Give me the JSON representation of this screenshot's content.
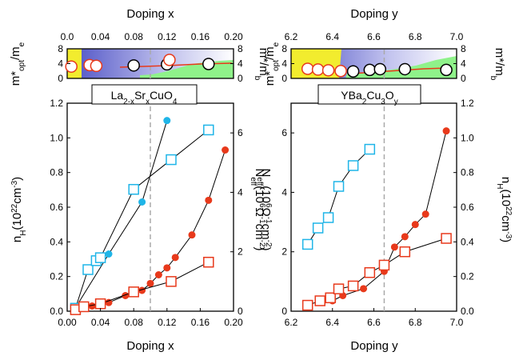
{
  "colors": {
    "filled_red": "#e8391b",
    "open_red": "#e8391b",
    "cyan": "#1fb5e8",
    "yellow": "#f2ec2e",
    "green": "#8ff28a",
    "purple": "#5a5cc8",
    "dash": "#aaaaaa"
  },
  "left": {
    "top_axis_label": "Doping x",
    "bottom_axis_label": "Doping x",
    "compound_label": "La2-xSrxCuO4",
    "left_ylabel": "nH(10^22cm^-3)",
    "right_ylabel": "Neff(10^6Ω^-1cm^-2)",
    "mass_left_label": "m*opt/me",
    "mass_right_label": "m*/mb",
    "x_ticks": [
      "0.00",
      "0.04",
      "0.08",
      "0.12",
      "0.16",
      "0.20"
    ],
    "top_x_ticks": [
      "0.0",
      "0.04",
      "0.08",
      "0.12",
      "0.16",
      "0.20"
    ],
    "left_y_ticks": [
      "0.0",
      "0.2",
      "0.4",
      "0.6",
      "0.8",
      "1.0",
      "1.2"
    ],
    "right_y_ticks": [
      "0",
      "2",
      "4",
      "6"
    ],
    "mass_left_ticks": [
      "0",
      "4",
      "8"
    ],
    "mass_right_ticks": [
      "0",
      "4",
      "8"
    ]
  },
  "right": {
    "top_axis_label": "Doping y",
    "bottom_axis_label": "Doping y",
    "compound_label": "YBa2Cu3Oy",
    "left_ylabel": "Neff(10^6Ω^-1cm^-2)",
    "right_ylabel": "nH(10^22cm^-3)",
    "mass_left_label": "m*opt/me",
    "mass_right_label": "m*/mb",
    "x_ticks": [
      "6.2",
      "6.4",
      "6.6",
      "6.8",
      "7.0"
    ],
    "top_x_ticks": [
      "6.2",
      "6.4",
      "6.6",
      "6.8",
      "7.0"
    ],
    "left_y_ticks": [
      "0",
      "2",
      "4",
      "6"
    ],
    "right_y_ticks": [
      "0.0",
      "0.2",
      "0.4",
      "0.6",
      "0.8",
      "1.0",
      "1.2"
    ],
    "mass_left_ticks": [
      "0",
      "4",
      "8"
    ],
    "mass_right_ticks": [
      "0",
      "4",
      "8"
    ]
  },
  "chart_data": [
    {
      "type": "scatter",
      "panel": "left-main",
      "xlabel": "Doping x",
      "xlim": [
        0.0,
        0.2
      ],
      "ylim_left": [
        0.0,
        1.2
      ],
      "ylim_right": [
        0,
        7
      ],
      "dashed_vline_x": 0.1,
      "grid": false,
      "series": [
        {
          "axis": "left",
          "marker": "filled-circle",
          "color": "red",
          "x": [
            0.01,
            0.02,
            0.03,
            0.04,
            0.05,
            0.07,
            0.09,
            0.1,
            0.11,
            0.12,
            0.13,
            0.15,
            0.17,
            0.19
          ],
          "y": [
            0.01,
            0.02,
            0.03,
            0.04,
            0.05,
            0.09,
            0.12,
            0.16,
            0.21,
            0.25,
            0.31,
            0.44,
            0.64,
            0.93
          ]
        },
        {
          "axis": "left",
          "marker": "filled-circle",
          "color": "cyan",
          "x": [
            0.01,
            0.05,
            0.09,
            0.12
          ],
          "y": [
            0.02,
            0.33,
            0.63,
            1.1
          ]
        },
        {
          "axis": "right",
          "marker": "open-square",
          "color": "cyan",
          "x": [
            0.01,
            0.025,
            0.035,
            0.04,
            0.08,
            0.125,
            0.17
          ],
          "y": [
            0.1,
            1.4,
            1.7,
            1.8,
            4.1,
            5.1,
            6.1
          ]
        },
        {
          "axis": "right",
          "marker": "open-square",
          "color": "red",
          "x": [
            0.01,
            0.02,
            0.04,
            0.08,
            0.125,
            0.17
          ],
          "y": [
            0.05,
            0.15,
            0.25,
            0.65,
            1.0,
            1.65
          ]
        }
      ]
    },
    {
      "type": "scatter",
      "panel": "left-mass",
      "xlim": [
        0.0,
        0.2
      ],
      "ylim": [
        0,
        8
      ],
      "series": [
        {
          "marker": "open-circle",
          "color": "red",
          "x": [
            0.005,
            0.027,
            0.035
          ],
          "y": [
            3.2,
            3.6,
            3.4
          ]
        },
        {
          "marker": "open-circle",
          "color": "black",
          "x": [
            0.08,
            0.12,
            0.17
          ],
          "y": [
            3.5,
            3.8,
            3.9
          ]
        },
        {
          "marker": "open-circle",
          "color": "red",
          "x": [
            0.123
          ],
          "y": [
            5.0
          ]
        }
      ]
    },
    {
      "type": "scatter",
      "panel": "right-main",
      "xlabel": "Doping y",
      "xlim": [
        6.2,
        7.0
      ],
      "ylim_left": [
        0,
        7
      ],
      "ylim_right": [
        0.0,
        1.2
      ],
      "dashed_vline_x": 6.65,
      "grid": false,
      "series": [
        {
          "axis": "right",
          "marker": "filled-circle",
          "color": "red",
          "x": [
            6.35,
            6.4,
            6.45,
            6.55,
            6.65,
            6.7,
            6.75,
            6.8,
            6.85,
            6.95
          ],
          "y": [
            0.05,
            0.06,
            0.09,
            0.13,
            0.23,
            0.37,
            0.43,
            0.5,
            0.56,
            1.04
          ]
        },
        {
          "axis": "left",
          "marker": "open-square",
          "color": "cyan",
          "x": [
            6.28,
            6.33,
            6.38,
            6.43,
            6.5,
            6.58
          ],
          "y": [
            2.25,
            2.8,
            3.15,
            4.2,
            4.9,
            5.45
          ]
        },
        {
          "axis": "left",
          "marker": "open-square",
          "color": "red",
          "x": [
            6.28,
            6.34,
            6.39,
            6.43,
            6.5,
            6.58,
            6.65,
            6.75,
            6.95
          ],
          "y": [
            0.2,
            0.35,
            0.45,
            0.75,
            0.85,
            1.3,
            1.55,
            2.0,
            2.45
          ]
        }
      ]
    },
    {
      "type": "scatter",
      "panel": "right-mass",
      "xlim": [
        6.2,
        7.0
      ],
      "ylim": [
        0,
        8
      ],
      "series": [
        {
          "marker": "open-circle",
          "color": "red",
          "x": [
            6.28,
            6.33,
            6.38,
            6.44
          ],
          "y": [
            2.6,
            2.4,
            2.2,
            2.0
          ]
        },
        {
          "marker": "open-circle",
          "color": "black",
          "x": [
            6.5,
            6.58,
            6.63,
            6.75,
            6.95
          ],
          "y": [
            1.9,
            2.3,
            2.5,
            2.5,
            2.3
          ]
        }
      ]
    }
  ]
}
